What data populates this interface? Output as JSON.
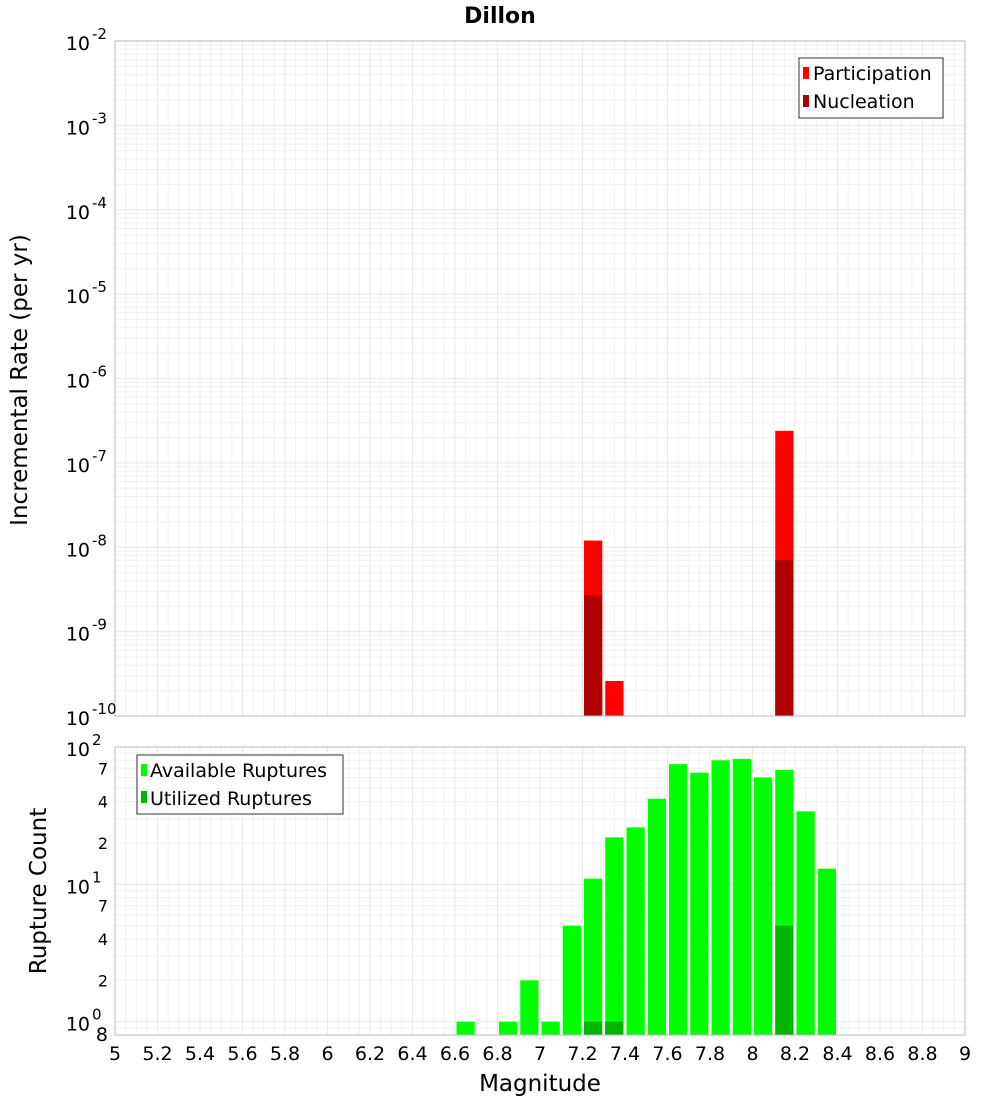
{
  "chart_data": [
    {
      "type": "bar",
      "title": "Dillon",
      "xlabel": "",
      "ylabel": "Incremental Rate (per yr)",
      "xlim": [
        5,
        9
      ],
      "ylim": [
        1e-10,
        0.01
      ],
      "yscale": "log",
      "bar_width": 0.1,
      "grid": true,
      "legend_position": "top-right",
      "x_ticks": [
        5,
        5.2,
        5.4,
        5.6,
        5.8,
        6,
        6.2,
        6.4,
        6.6,
        6.8,
        7,
        7.2,
        7.4,
        7.6,
        7.8,
        8,
        8.2,
        8.4,
        8.6,
        8.8,
        9
      ],
      "y_tick_exponents": [
        -10,
        -9,
        -8,
        -7,
        -6,
        -5,
        -4,
        -3,
        -2
      ],
      "series": [
        {
          "name": "Participation",
          "color": "#ff0000",
          "x": [
            7.25,
            7.35,
            8.15
          ],
          "values": [
            1.2e-08,
            2.6e-10,
            2.4e-07
          ]
        },
        {
          "name": "Nucleation",
          "color": "#b00000",
          "x": [
            7.25,
            8.15
          ],
          "values": [
            2.7e-09,
            7e-09
          ]
        }
      ]
    },
    {
      "type": "bar",
      "title": "",
      "xlabel": "Magnitude",
      "ylabel": "Rupture Count",
      "xlim": [
        5,
        9
      ],
      "ylim": [
        0.8,
        100
      ],
      "yscale": "log",
      "bar_width": 0.1,
      "grid": true,
      "legend_position": "top-left",
      "x_ticks": [
        5,
        5.2,
        5.4,
        5.6,
        5.8,
        6,
        6.2,
        6.4,
        6.6,
        6.8,
        7,
        7.2,
        7.4,
        7.6,
        7.8,
        8,
        8.2,
        8.4,
        8.6,
        8.8,
        9
      ],
      "y_tick_exponents": [
        0,
        1,
        2
      ],
      "y_minor_ticks": [
        {
          "value": 0.8,
          "label": "8"
        },
        {
          "value": 2,
          "label": "2"
        },
        {
          "value": 4,
          "label": "4"
        },
        {
          "value": 7,
          "label": "7"
        },
        {
          "value": 20,
          "label": "2"
        },
        {
          "value": 40,
          "label": "4"
        },
        {
          "value": 70,
          "label": "7"
        }
      ],
      "series": [
        {
          "name": "Available Ruptures",
          "color": "#00ff00",
          "x": [
            6.65,
            6.85,
            6.95,
            7.05,
            7.15,
            7.25,
            7.35,
            7.45,
            7.55,
            7.65,
            7.75,
            7.85,
            7.95,
            8.05,
            8.15,
            8.25,
            8.35
          ],
          "values": [
            1,
            1,
            2,
            1,
            5,
            11,
            22,
            26,
            42,
            75,
            65,
            80,
            82,
            60,
            68,
            34,
            13
          ]
        },
        {
          "name": "Utilized Ruptures",
          "color": "#00b400",
          "x": [
            7.25,
            7.35,
            8.15
          ],
          "values": [
            1,
            1,
            5
          ]
        }
      ]
    }
  ]
}
